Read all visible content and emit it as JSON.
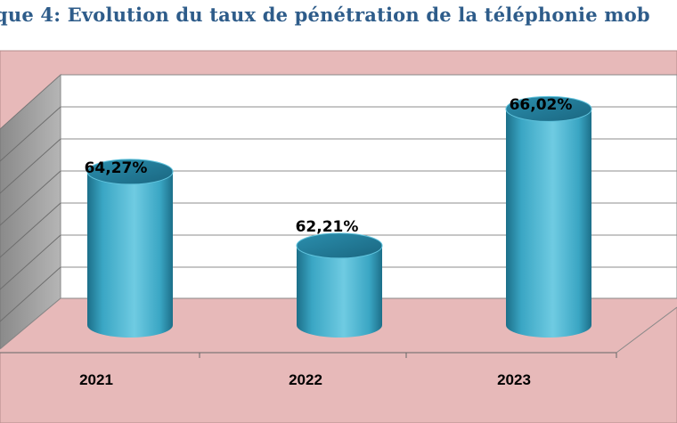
{
  "title": "que 4: Evolution du taux de pénétration de la téléphonie mob",
  "chart_data": {
    "type": "bar",
    "style": "3d-cylinder",
    "categories": [
      "2021",
      "2022",
      "2023"
    ],
    "values": [
      64.27,
      62.21,
      66.02
    ],
    "data_labels": [
      "64,27%",
      "62,21%",
      "66,02%"
    ],
    "ylim": [
      60,
      67
    ],
    "grid": true,
    "legend": "none",
    "colors": {
      "bar": "#3aa6c4",
      "bar_dark": "#1c6f89",
      "bar_light": "#7fd4e8",
      "chart_area": "#e7b9b9",
      "side_wall": "#9e9e9e",
      "back_wall": "#ffffff",
      "title": "#2e5c8a"
    }
  }
}
